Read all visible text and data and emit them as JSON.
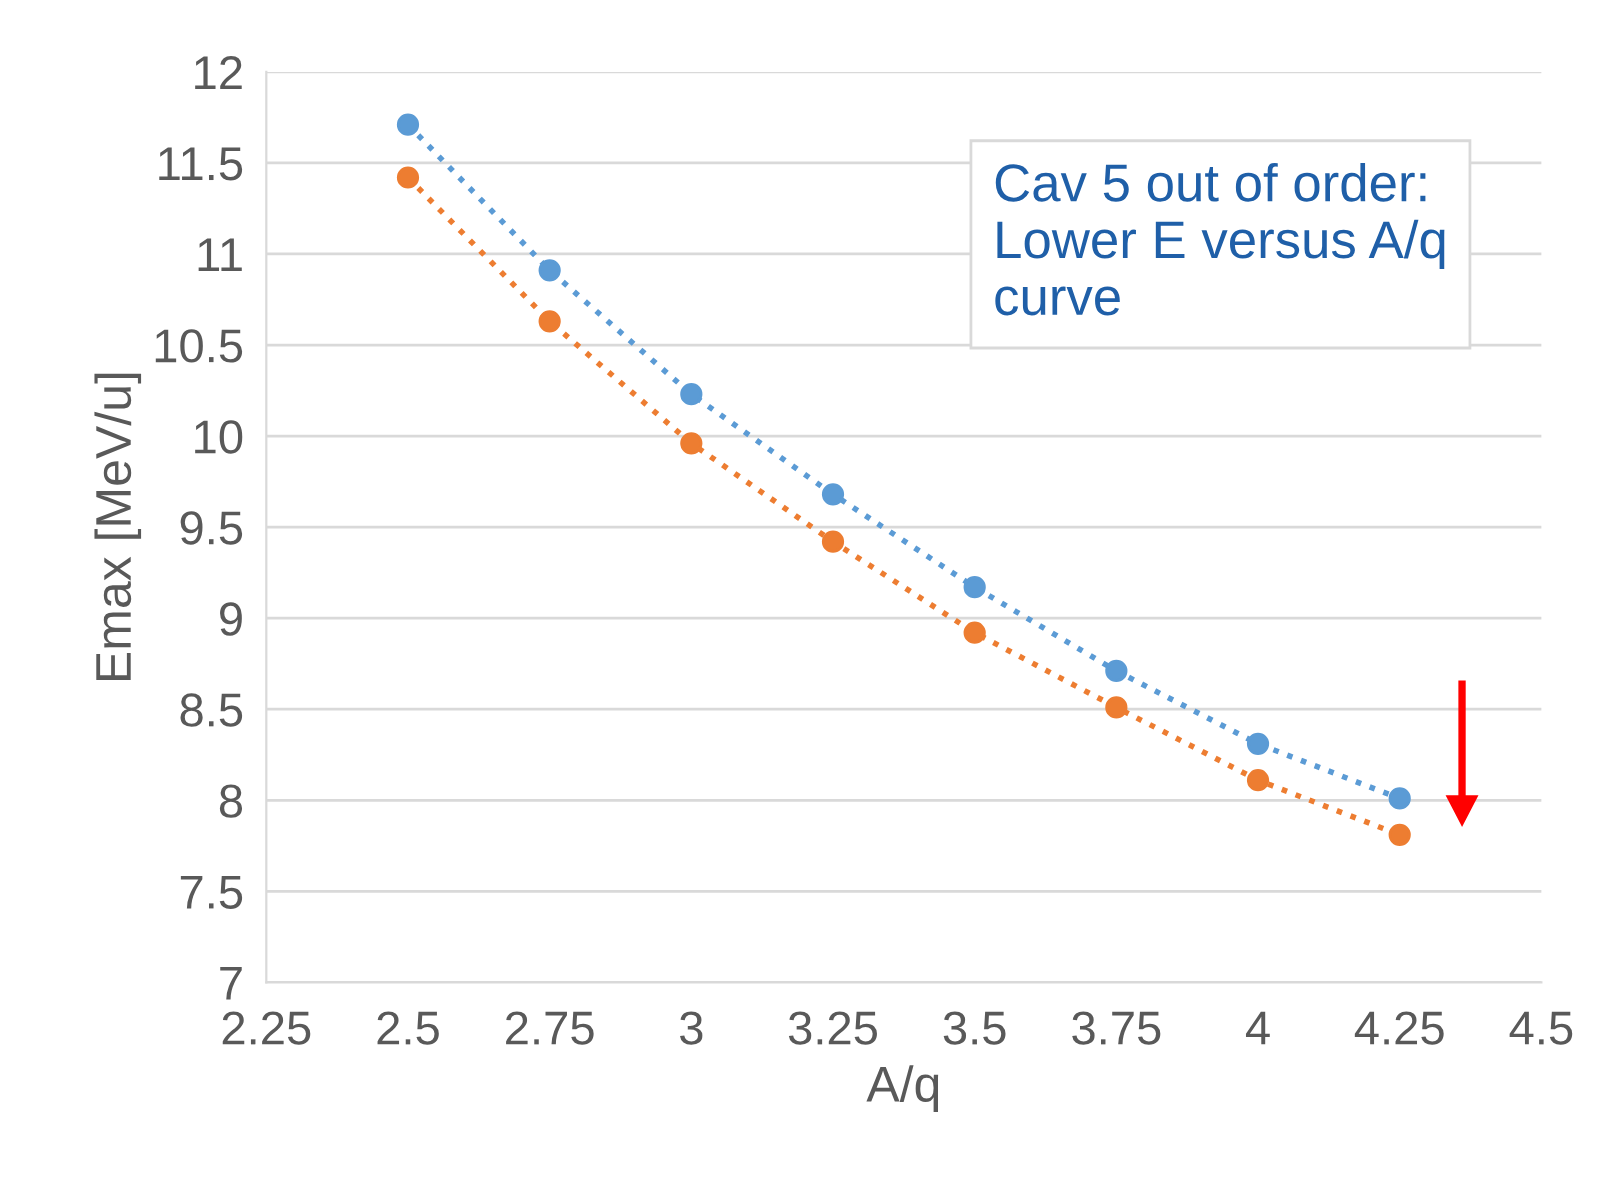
{
  "chart_data": {
    "type": "line",
    "xlabel": "A/q",
    "ylabel": "Emax [MeV/u]",
    "x": [
      2.5,
      2.75,
      3,
      3.25,
      3.5,
      3.75,
      4,
      4.25
    ],
    "series": [
      {
        "color": "#5b9bd5",
        "values": [
          11.71,
          10.91,
          10.23,
          9.68,
          9.17,
          8.71,
          8.31,
          8.01
        ]
      },
      {
        "color": "#ed7d31",
        "values": [
          11.42,
          10.63,
          9.96,
          9.42,
          8.92,
          8.51,
          8.11,
          7.81
        ]
      }
    ],
    "xlim": [
      2.25,
      4.5
    ],
    "xticks": [
      2.25,
      2.5,
      2.75,
      3,
      3.25,
      3.5,
      3.75,
      4,
      4.25,
      4.5
    ],
    "ylim": [
      7,
      12
    ],
    "yticks": [
      7,
      7.5,
      8,
      8.5,
      9,
      9.5,
      10,
      10.5,
      11,
      11.5,
      12
    ],
    "grid": "y",
    "marker": "circle",
    "line_style": "dotted",
    "annotations": [
      "Cav 5 out of order:\nLower E versus A/q\ncurve"
    ]
  }
}
